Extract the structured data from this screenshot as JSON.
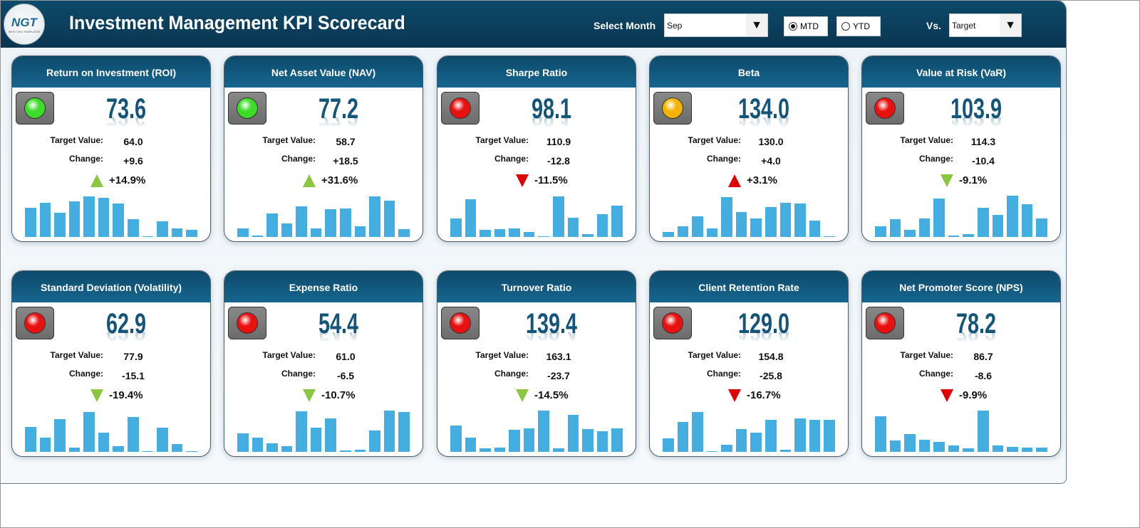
{
  "header": {
    "title": "Investment Management KPI Scorecard",
    "logo_text": "NGT",
    "logo_sub": "NEXT GEN TEMPLATES",
    "select_month_label": "Select Month",
    "month": "Sep",
    "mtd": "MTD",
    "ytd": "YTD",
    "mode_selected": "MTD",
    "vs_label": "Vs.",
    "vs_value": "Target"
  },
  "colors": {
    "green": "#3ddc2a",
    "red": "#e81010",
    "amber": "#f2b400",
    "arrow_green": "#8cc63f",
    "arrow_red": "#e00000"
  },
  "labels": {
    "target": "Target Value:",
    "change": "Change:"
  },
  "cards": [
    {
      "title": "Return on Investment (ROI)",
      "value": "73.6",
      "target": "64.0",
      "change": "+9.6",
      "pct": "+14.9%",
      "status": "green",
      "arrow": "up",
      "arrow_color": "green",
      "bars": [
        41,
        48,
        34,
        50,
        57,
        55,
        47,
        25,
        1,
        22,
        12,
        10
      ]
    },
    {
      "title": "Net Asset Value (NAV)",
      "value": "77.2",
      "target": "58.7",
      "change": "+18.5",
      "pct": "+31.6%",
      "status": "green",
      "arrow": "up",
      "arrow_color": "green",
      "bars": [
        12,
        2,
        33,
        19,
        43,
        12,
        39,
        40,
        15,
        57,
        51,
        11
      ]
    },
    {
      "title": "Sharpe Ratio",
      "value": "98.1",
      "target": "110.9",
      "change": "-12.8",
      "pct": "-11.5%",
      "status": "red",
      "arrow": "down",
      "arrow_color": "red",
      "bars": [
        26,
        53,
        10,
        11,
        12,
        7,
        1,
        57,
        27,
        4,
        32,
        44
      ]
    },
    {
      "title": "Beta",
      "value": "134.0",
      "target": "130.0",
      "change": "+4.0",
      "pct": "+3.1%",
      "status": "amber",
      "arrow": "up",
      "arrow_color": "red",
      "bars": [
        7,
        15,
        29,
        12,
        56,
        35,
        26,
        42,
        48,
        47,
        23,
        1
      ]
    },
    {
      "title": "Value at Risk (VaR)",
      "value": "103.9",
      "target": "114.3",
      "change": "-10.4",
      "pct": "-9.1%",
      "status": "red",
      "arrow": "down",
      "arrow_color": "green",
      "bars": [
        15,
        25,
        10,
        26,
        54,
        2,
        4,
        41,
        31,
        58,
        46,
        26
      ]
    },
    {
      "title": "Standard Deviation (Volatility)",
      "value": "62.9",
      "target": "77.9",
      "change": "-15.1",
      "pct": "-19.4%",
      "status": "red",
      "arrow": "down",
      "arrow_color": "green",
      "bars": [
        35,
        20,
        46,
        6,
        56,
        27,
        8,
        49,
        1,
        34,
        11,
        1
      ]
    },
    {
      "title": "Expense Ratio",
      "value": "54.4",
      "target": "61.0",
      "change": "-6.5",
      "pct": "-10.7%",
      "status": "red",
      "arrow": "down",
      "arrow_color": "green",
      "bars": [
        26,
        20,
        12,
        8,
        57,
        34,
        47,
        2,
        3,
        30,
        58,
        56
      ]
    },
    {
      "title": "Turnover Ratio",
      "value": "139.4",
      "target": "163.1",
      "change": "-23.7",
      "pct": "-14.5%",
      "status": "red",
      "arrow": "down",
      "arrow_color": "green",
      "bars": [
        37,
        20,
        5,
        6,
        31,
        33,
        58,
        5,
        52,
        32,
        29,
        33
      ]
    },
    {
      "title": "Client Retention Rate",
      "value": "129.0",
      "target": "154.8",
      "change": "-25.8",
      "pct": "-16.7%",
      "status": "red",
      "arrow": "down",
      "arrow_color": "red",
      "bars": [
        19,
        42,
        56,
        1,
        10,
        32,
        27,
        45,
        3,
        47,
        45,
        45
      ]
    },
    {
      "title": "Net Promoter Score (NPS)",
      "value": "78.2",
      "target": "86.7",
      "change": "-8.6",
      "pct": "-9.9%",
      "status": "red",
      "arrow": "down",
      "arrow_color": "red",
      "bars": [
        50,
        16,
        25,
        17,
        14,
        9,
        5,
        58,
        9,
        7,
        6,
        6
      ]
    }
  ]
}
